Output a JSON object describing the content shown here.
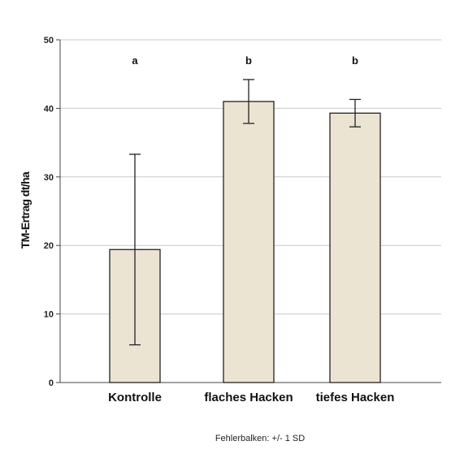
{
  "chart_data": {
    "type": "bar",
    "categories": [
      "Kontrolle",
      "flaches Hacken",
      "tiefes Hacken"
    ],
    "values": [
      19.4,
      41.0,
      39.3
    ],
    "error_sd": {
      "lower": [
        5.5,
        37.8,
        37.3
      ],
      "upper": [
        33.3,
        44.2,
        41.3
      ]
    },
    "significance_letters": [
      "a",
      "b",
      "b"
    ],
    "ylabel": "TM-Ertrag dt/ha",
    "xlabel": "",
    "ylim": [
      0,
      50
    ],
    "yticks": [
      0,
      10,
      20,
      30,
      40,
      50
    ],
    "grid": true,
    "footnote": "Fehlerbalken: +/- 1 SD",
    "colors": {
      "bar_fill": "#ece4d2",
      "bar_stroke": "#222222",
      "grid": "#c8c8c8",
      "axis": "#444444",
      "error_bar": "#222222"
    }
  }
}
